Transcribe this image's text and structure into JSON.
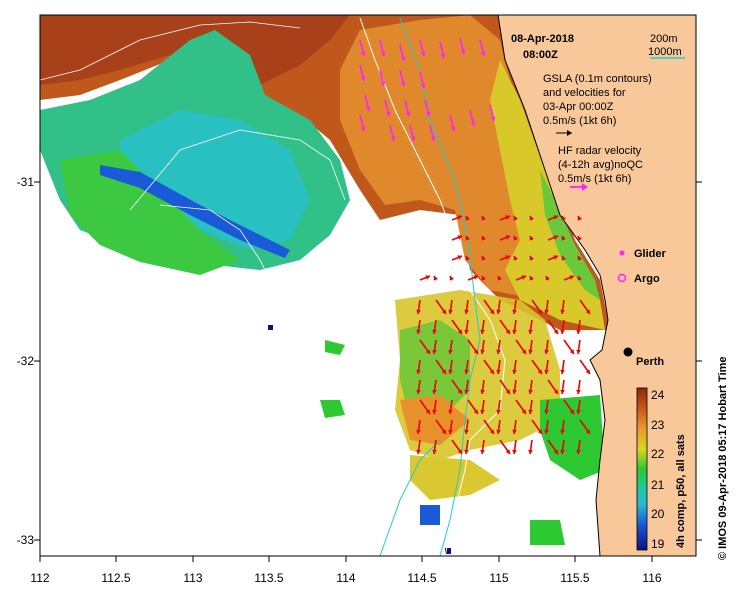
{
  "map": {
    "date": "08-Apr-2018",
    "time": "08:00Z",
    "bathymetry_legend": [
      "200m",
      "1000m"
    ],
    "gsla_note": [
      "GSLA (0.1m contours)",
      "and velocities for",
      "03-Apr 00:00Z",
      "0.5m/s (1kt 6h)"
    ],
    "hf_note": [
      "HF radar velocity",
      "(4-12h avg)noQC",
      "0.5m/s (1kt 6h)"
    ],
    "glider_label": "Glider",
    "argo_label": "Argo",
    "city_label": "Perth",
    "lon_ticks": [
      "112",
      "112.5",
      "113",
      "113.5",
      "114",
      "114.5",
      "115",
      "115.5",
      "116"
    ],
    "lat_ticks": [
      "-31",
      "-32",
      "-33"
    ],
    "colorbar_ticks": [
      "24",
      "23",
      "22",
      "21",
      "20",
      "19"
    ],
    "colorbar_title": "4h comp, p50, all sats",
    "timestamp": "© IMOS 09-Apr-2018 05:17 Hobart Time",
    "colors": {
      "land": "#f9c89a",
      "hf_arrow": "#ee0000",
      "gsla_arrow": "#ff22ff",
      "bathy_200": "#ffffff",
      "bathy_1000": "#22cccc"
    }
  }
}
